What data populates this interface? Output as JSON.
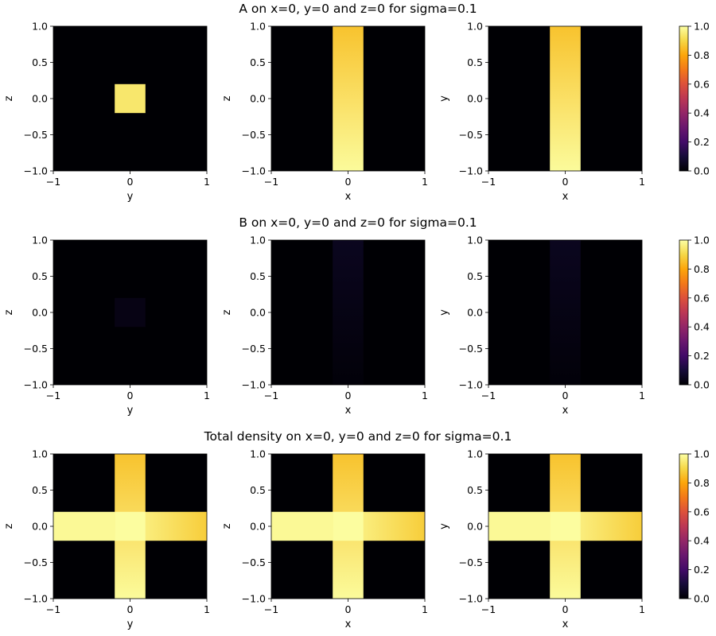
{
  "chart_data": [
    {
      "type": "heatmap",
      "title": "A on x=0, y=0 and z=0 for sigma=0.1",
      "colormap": "inferno",
      "vlim": [
        0,
        1
      ],
      "colorbar_ticks": [
        "0.0",
        "0.2",
        "0.4",
        "0.6",
        "0.8",
        "1.0"
      ],
      "panels": [
        {
          "xlabel": "y",
          "ylabel": "z",
          "xlim": [
            -1,
            1
          ],
          "ylim": [
            -1,
            1
          ],
          "xticks": [
            "−1",
            "0",
            "1"
          ],
          "yticks": [
            "1.0",
            "0.5",
            "0.0",
            "−0.5",
            "−1.0"
          ],
          "regions": [
            {
              "x": [
                -0.2,
                0.2
              ],
              "y": [
                -0.2,
                0.2
              ],
              "v_start": 0.94,
              "v_end": 0.94,
              "dir": "x"
            }
          ]
        },
        {
          "xlabel": "x",
          "ylabel": "z",
          "xlim": [
            -1,
            1
          ],
          "ylim": [
            -1,
            1
          ],
          "xticks": [
            "−1",
            "0",
            "1"
          ],
          "yticks": [
            "1.0",
            "0.5",
            "0.0",
            "−0.5",
            "−1.0"
          ],
          "regions": [
            {
              "x": [
                -0.2,
                0.2
              ],
              "y": [
                -1.0,
                1.0
              ],
              "v_start": 0.99,
              "v_end": 0.86,
              "dir": "y"
            }
          ]
        },
        {
          "xlabel": "x",
          "ylabel": "y",
          "xlim": [
            -1,
            1
          ],
          "ylim": [
            -1,
            1
          ],
          "xticks": [
            "−1",
            "0",
            "1"
          ],
          "yticks": [
            "1.0",
            "0.5",
            "0.0",
            "−0.5",
            "−1.0"
          ],
          "regions": [
            {
              "x": [
                -0.2,
                0.2
              ],
              "y": [
                -1.0,
                1.0
              ],
              "v_start": 0.99,
              "v_end": 0.86,
              "dir": "y"
            }
          ]
        }
      ]
    },
    {
      "type": "heatmap",
      "title": "B on x=0, y=0 and z=0 for sigma=0.1",
      "colormap": "inferno",
      "vlim": [
        0,
        1
      ],
      "colorbar_ticks": [
        "0.0",
        "0.2",
        "0.4",
        "0.6",
        "0.8",
        "1.0"
      ],
      "panels": [
        {
          "xlabel": "y",
          "ylabel": "z",
          "xlim": [
            -1,
            1
          ],
          "ylim": [
            -1,
            1
          ],
          "xticks": [
            "−1",
            "0",
            "1"
          ],
          "yticks": [
            "1.0",
            "0.5",
            "0.0",
            "−0.5",
            "−1.0"
          ],
          "regions": [
            {
              "x": [
                -0.2,
                0.2
              ],
              "y": [
                -0.2,
                0.2
              ],
              "v_start": 0.03,
              "v_end": 0.03,
              "dir": "x"
            }
          ]
        },
        {
          "xlabel": "x",
          "ylabel": "z",
          "xlim": [
            -1,
            1
          ],
          "ylim": [
            -1,
            1
          ],
          "xticks": [
            "−1",
            "0",
            "1"
          ],
          "yticks": [
            "1.0",
            "0.5",
            "0.0",
            "−0.5",
            "−1.0"
          ],
          "regions": [
            {
              "x": [
                -0.2,
                0.2
              ],
              "y": [
                -1.0,
                1.0
              ],
              "v_start": 0.01,
              "v_end": 0.05,
              "dir": "y"
            }
          ]
        },
        {
          "xlabel": "x",
          "ylabel": "y",
          "xlim": [
            -1,
            1
          ],
          "ylim": [
            -1,
            1
          ],
          "xticks": [
            "−1",
            "0",
            "1"
          ],
          "yticks": [
            "1.0",
            "0.5",
            "0.0",
            "−0.5",
            "−1.0"
          ],
          "regions": [
            {
              "x": [
                -0.2,
                0.2
              ],
              "y": [
                -1.0,
                1.0
              ],
              "v_start": 0.01,
              "v_end": 0.05,
              "dir": "y"
            }
          ]
        }
      ]
    },
    {
      "type": "heatmap",
      "title": "Total density on x=0, y=0 and z=0 for sigma=0.1",
      "colormap": "inferno",
      "vlim": [
        0,
        1
      ],
      "colorbar_ticks": [
        "0.0",
        "0.2",
        "0.4",
        "0.6",
        "0.8",
        "1.0"
      ],
      "panels": [
        {
          "xlabel": "y",
          "ylabel": "z",
          "xlim": [
            -1,
            1
          ],
          "ylim": [
            -1,
            1
          ],
          "xticks": [
            "−1",
            "0",
            "1"
          ],
          "yticks": [
            "1.0",
            "0.5",
            "0.0",
            "−0.5",
            "−1.0"
          ],
          "regions": [
            {
              "x": [
                -1.0,
                1.0
              ],
              "y": [
                -0.2,
                0.2
              ],
              "v_start": 0.985,
              "v_end": 0.88,
              "dir": "x"
            },
            {
              "x": [
                -0.2,
                0.2
              ],
              "y": [
                -1.0,
                1.0
              ],
              "v_start": 0.99,
              "v_end": 0.86,
              "dir": "y"
            },
            {
              "x": [
                -0.2,
                0.2
              ],
              "y": [
                -0.2,
                0.2
              ],
              "v_start": 0.995,
              "v_end": 0.995,
              "dir": "x"
            }
          ]
        },
        {
          "xlabel": "x",
          "ylabel": "z",
          "xlim": [
            -1,
            1
          ],
          "ylim": [
            -1,
            1
          ],
          "xticks": [
            "−1",
            "0",
            "1"
          ],
          "yticks": [
            "1.0",
            "0.5",
            "0.0",
            "−0.5",
            "−1.0"
          ],
          "regions": [
            {
              "x": [
                -1.0,
                1.0
              ],
              "y": [
                -0.2,
                0.2
              ],
              "v_start": 0.985,
              "v_end": 0.88,
              "dir": "x"
            },
            {
              "x": [
                -0.2,
                0.2
              ],
              "y": [
                -1.0,
                1.0
              ],
              "v_start": 0.99,
              "v_end": 0.86,
              "dir": "y"
            },
            {
              "x": [
                -0.2,
                0.2
              ],
              "y": [
                -0.2,
                0.2
              ],
              "v_start": 0.995,
              "v_end": 0.995,
              "dir": "x"
            }
          ]
        },
        {
          "xlabel": "x",
          "ylabel": "y",
          "xlim": [
            -1,
            1
          ],
          "ylim": [
            -1,
            1
          ],
          "xticks": [
            "−1",
            "0",
            "1"
          ],
          "yticks": [
            "1.0",
            "0.5",
            "0.0",
            "−0.5",
            "−1.0"
          ],
          "regions": [
            {
              "x": [
                -1.0,
                1.0
              ],
              "y": [
                -0.2,
                0.2
              ],
              "v_start": 0.985,
              "v_end": 0.88,
              "dir": "x"
            },
            {
              "x": [
                -0.2,
                0.2
              ],
              "y": [
                -1.0,
                1.0
              ],
              "v_start": 0.99,
              "v_end": 0.86,
              "dir": "y"
            },
            {
              "x": [
                -0.2,
                0.2
              ],
              "y": [
                -0.2,
                0.2
              ],
              "v_start": 0.995,
              "v_end": 0.995,
              "dir": "x"
            }
          ]
        }
      ]
    }
  ]
}
